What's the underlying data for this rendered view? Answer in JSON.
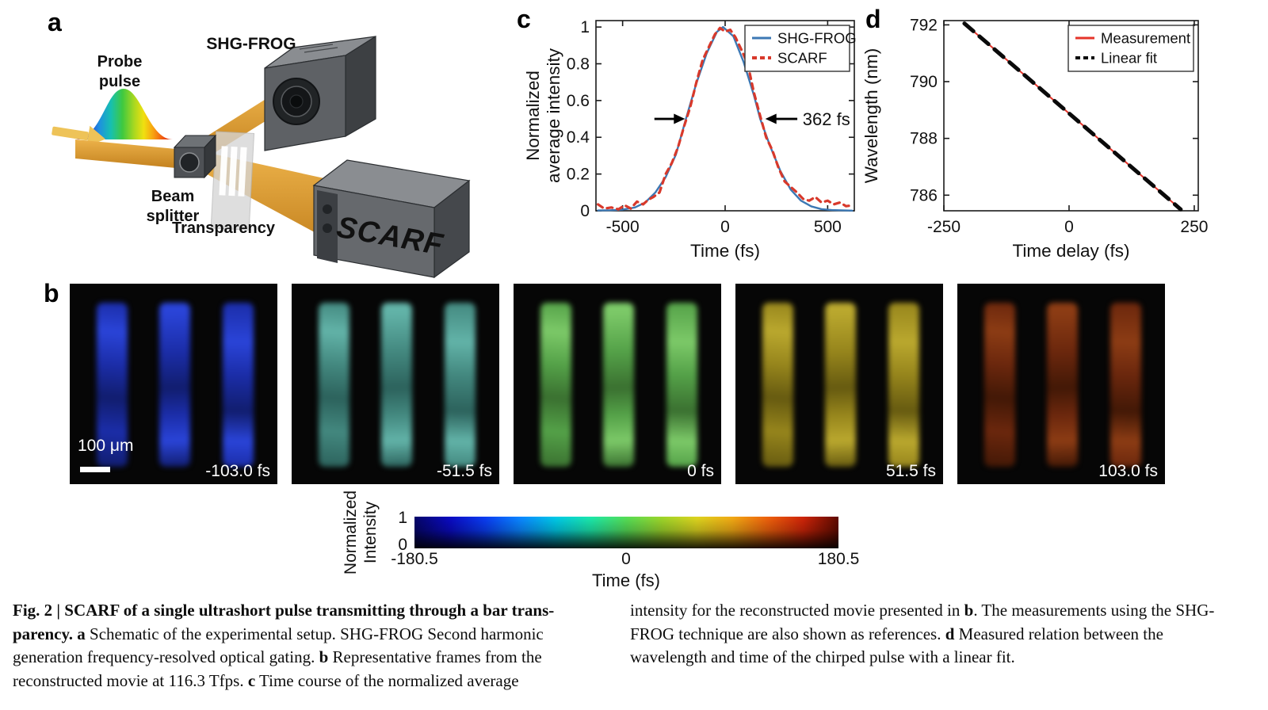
{
  "panels": {
    "a": "a",
    "b": "b",
    "c": "c",
    "d": "d"
  },
  "schematic": {
    "probe_line1": "Probe",
    "probe_line2": "pulse",
    "shg_frog_label": "SHG-FROG",
    "beam_splitter_line1": "Beam",
    "beam_splitter_line2": "splitter",
    "transparency_label": "Transparency",
    "scarf_label": "SCARF"
  },
  "frames": {
    "scale_bar_label": "100 μm",
    "items": [
      {
        "time_label": "-103.0 fs",
        "dark": "#111d6e",
        "base": "#1b2da8",
        "light": "#2a44d8"
      },
      {
        "time_label": "-51.5 fs",
        "dark": "#2c625c",
        "base": "#43887f",
        "light": "#62b3a8"
      },
      {
        "time_label": "0 fs",
        "dark": "#3a7030",
        "base": "#54a148",
        "light": "#7cc968"
      },
      {
        "time_label": "51.5 fs",
        "dark": "#665a10",
        "base": "#96851c",
        "light": "#baa82e"
      },
      {
        "time_label": "103.0 fs",
        "dark": "#421806",
        "base": "#6b270d",
        "light": "#8c3c14"
      }
    ]
  },
  "colorbar": {
    "ylabel_line1": "Normalized",
    "ylabel_line2": "Intensity",
    "ytick_top": "1",
    "ytick_bottom": "0",
    "xticks": [
      "-180.5",
      "0",
      "180.5"
    ],
    "xlabel": "Time (fs)",
    "gradient": [
      "#050568",
      "#0a0ac0",
      "#0a3cf0",
      "#0a86ff",
      "#00c8e6",
      "#1ce6a8",
      "#55dc55",
      "#9cd42a",
      "#dcd21e",
      "#f0a814",
      "#ec600c",
      "#cc2408",
      "#5e0a00"
    ]
  },
  "chart_data": [
    {
      "id": "c",
      "type": "line",
      "xlabel": "Time (fs)",
      "ylabel_lines": [
        "Normalized",
        "average intensity"
      ],
      "xlim": [
        -630,
        630
      ],
      "ylim": [
        0,
        1.035
      ],
      "xticks": [
        {
          "v": -500,
          "label": "-500"
        },
        {
          "v": 0,
          "label": "0"
        },
        {
          "v": 500,
          "label": "500"
        }
      ],
      "yticks": [
        {
          "v": 0,
          "label": "0"
        },
        {
          "v": 0.2,
          "label": "0.2"
        },
        {
          "v": 0.4,
          "label": "0.4"
        },
        {
          "v": 0.6,
          "label": "0.6"
        },
        {
          "v": 0.8,
          "label": "0.8"
        },
        {
          "v": 1,
          "label": "1"
        }
      ],
      "legend_position": "top-right",
      "grid": false,
      "annotation": {
        "label": "362 fs",
        "y": 0.5,
        "label_x": 378,
        "arrows": [
          {
            "x_tail": -345,
            "x_head": -196
          },
          {
            "x_tail": 352,
            "x_head": 196
          }
        ]
      },
      "series": [
        {
          "name": "SHG-FROG",
          "color": "#3c78b4",
          "width": 2.4,
          "points": [
            [
              -620,
              0.002
            ],
            [
              -560,
              0.003
            ],
            [
              -500,
              0.006
            ],
            [
              -440,
              0.018
            ],
            [
              -390,
              0.045
            ],
            [
              -340,
              0.1
            ],
            [
              -290,
              0.183
            ],
            [
              -240,
              0.306
            ],
            [
              -190,
              0.505
            ],
            [
              -140,
              0.695
            ],
            [
              -90,
              0.857
            ],
            [
              -40,
              0.974
            ],
            [
              -10,
              1.0
            ],
            [
              40,
              0.95
            ],
            [
              90,
              0.81
            ],
            [
              140,
              0.63
            ],
            [
              171,
              0.5
            ],
            [
              220,
              0.35
            ],
            [
              270,
              0.215
            ],
            [
              320,
              0.115
            ],
            [
              370,
              0.055
            ],
            [
              420,
              0.024
            ],
            [
              470,
              0.009
            ],
            [
              520,
              0.004
            ],
            [
              620,
              0.001
            ]
          ]
        },
        {
          "name": "SCARF",
          "color": "#d8392b",
          "width": 3.2,
          "dash": "7 6",
          "points": [
            [
              -620,
              0.035
            ],
            [
              -590,
              0.012
            ],
            [
              -555,
              0.018
            ],
            [
              -520,
              0.008
            ],
            [
              -490,
              0.03
            ],
            [
              -460,
              0.012
            ],
            [
              -430,
              0.05
            ],
            [
              -400,
              0.035
            ],
            [
              -375,
              0.06
            ],
            [
              -350,
              0.075
            ],
            [
              -320,
              0.1
            ],
            [
              -290,
              0.2
            ],
            [
              -260,
              0.26
            ],
            [
              -230,
              0.345
            ],
            [
              -200,
              0.46
            ],
            [
              -170,
              0.565
            ],
            [
              -140,
              0.7
            ],
            [
              -110,
              0.82
            ],
            [
              -80,
              0.89
            ],
            [
              -50,
              0.96
            ],
            [
              -25,
              0.995
            ],
            [
              0,
              0.975
            ],
            [
              25,
              0.985
            ],
            [
              50,
              0.945
            ],
            [
              80,
              0.875
            ],
            [
              110,
              0.8
            ],
            [
              140,
              0.645
            ],
            [
              170,
              0.52
            ],
            [
              200,
              0.4
            ],
            [
              230,
              0.33
            ],
            [
              260,
              0.235
            ],
            [
              290,
              0.16
            ],
            [
              320,
              0.13
            ],
            [
              350,
              0.1
            ],
            [
              380,
              0.065
            ],
            [
              410,
              0.055
            ],
            [
              440,
              0.075
            ],
            [
              470,
              0.045
            ],
            [
              500,
              0.055
            ],
            [
              530,
              0.035
            ],
            [
              560,
              0.045
            ],
            [
              590,
              0.025
            ],
            [
              620,
              0.03
            ]
          ]
        }
      ]
    },
    {
      "id": "d",
      "type": "line",
      "xlabel": "Time delay (fs)",
      "ylabel_lines": [
        "Wavelength (nm)"
      ],
      "xlim": [
        -250,
        258
      ],
      "ylim": [
        785.45,
        792.15
      ],
      "xticks": [
        {
          "v": -250,
          "label": "-250"
        },
        {
          "v": 0,
          "label": "0"
        },
        {
          "v": 250,
          "label": "250"
        }
      ],
      "yticks": [
        {
          "v": 786,
          "label": "786"
        },
        {
          "v": 788,
          "label": "788"
        },
        {
          "v": 790,
          "label": "790"
        },
        {
          "v": 792,
          "label": "792"
        }
      ],
      "legend_position": "top-right",
      "grid": false,
      "series": [
        {
          "name": "Measurement",
          "color": "#e5342a",
          "width": 2,
          "points": [
            [
              -209,
              792.05
            ],
            [
              223,
              785.5
            ]
          ]
        },
        {
          "name": "Linear fit",
          "color": "#0a0a0a",
          "width": 5,
          "dash": "15 10",
          "points": [
            [
              -209,
              792.05
            ],
            [
              223,
              785.5
            ]
          ]
        }
      ]
    }
  ],
  "caption": {
    "left": [
      {
        "text": "Fig. 2 | SCARF of a single ultrashort pulse transmitting through a bar trans-parency. "
      },
      {
        "text": "a"
      },
      {
        "text": " Schematic of the experimental setup. SHG-FROG Second harmonic generation frequency-resolved optical gating. "
      },
      {
        "text": "b"
      },
      {
        "text": " Representative frames from the reconstructed movie at 116.3 Tfps. "
      },
      {
        "text": "c"
      },
      {
        "text": " Time course of the normalized average"
      }
    ],
    "right": [
      {
        "text": "intensity for the reconstructed movie presented in "
      },
      {
        "text": "b"
      },
      {
        "text": ". The measurements using the SHG-FROG technique are also shown as references. "
      },
      {
        "text": "d"
      },
      {
        "text": " Measured relation between the wavelength and time of the chirped pulse with a linear fit."
      }
    ]
  }
}
